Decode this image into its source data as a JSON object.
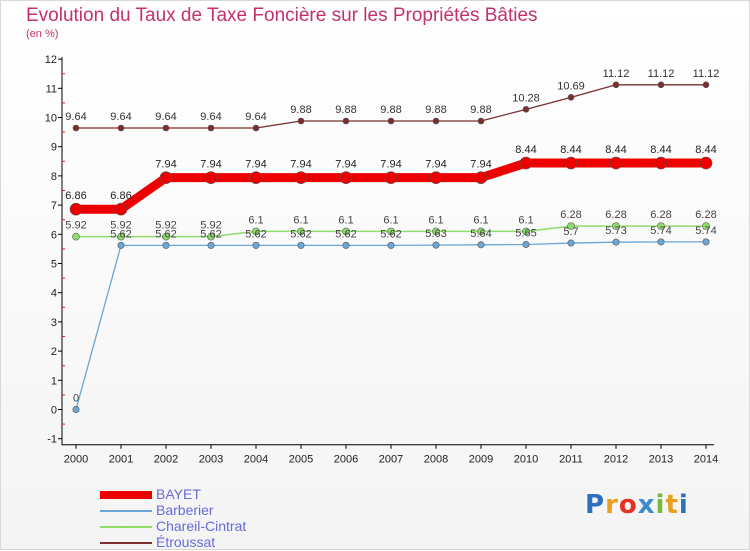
{
  "chart_data": {
    "type": "line",
    "title": "Evolution du Taux de Taxe Foncière sur les Propriétés Bâties",
    "ylabel": "(en %)",
    "xlabel": "",
    "x": [
      "2000",
      "2001",
      "2002",
      "2003",
      "2004",
      "2005",
      "2006",
      "2007",
      "2008",
      "2009",
      "2010",
      "2011",
      "2012",
      "2013",
      "2014"
    ],
    "ylim": [
      -1,
      12
    ],
    "yticks": [
      -1,
      0,
      1,
      2,
      3,
      4,
      5,
      6,
      7,
      8,
      9,
      10,
      11,
      12
    ],
    "grid": false,
    "legend_position": "bottom-left",
    "series": [
      {
        "name": "Étroussat",
        "color": "#7a2e2e",
        "values": [
          9.64,
          9.64,
          9.64,
          9.64,
          9.64,
          9.88,
          9.88,
          9.88,
          9.88,
          9.88,
          10.28,
          10.69,
          11.12,
          11.12,
          11.12
        ],
        "labels": [
          "9.64",
          "9.64",
          "9.64",
          "9.64",
          "9.64",
          "9.88",
          "9.88",
          "9.88",
          "9.88",
          "9.88",
          "10.28",
          "10.69",
          "11.12",
          "11.12",
          "11.12"
        ]
      },
      {
        "name": "Chareil-Cintrat",
        "color": "#8fdc6a",
        "values": [
          5.92,
          5.92,
          5.92,
          5.92,
          6.1,
          6.1,
          6.1,
          6.1,
          6.1,
          6.1,
          6.1,
          6.28,
          6.28,
          6.28,
          6.28
        ],
        "labels": [
          "5.92",
          "5.92",
          "5.92",
          "5.92",
          "6.1",
          "6.1",
          "6.1",
          "6.1",
          "6.1",
          "6.1",
          "6.1",
          "6.28",
          "6.28",
          "6.28",
          "6.28"
        ]
      },
      {
        "name": "Barberier",
        "color": "#6aa6d6",
        "values": [
          0,
          5.62,
          5.62,
          5.62,
          5.62,
          5.62,
          5.62,
          5.62,
          5.63,
          5.64,
          5.65,
          5.7,
          5.73,
          5.74,
          5.74
        ],
        "labels": [
          "0",
          "5.62",
          "5.62",
          "5.62",
          "5.62",
          "5.62",
          "5.62",
          "5.62",
          "5.63",
          "5.64",
          "5.65",
          "5.7",
          "5.73",
          "5.74",
          "5.74"
        ]
      },
      {
        "name": "BAYET",
        "color": "#ee0000",
        "values": [
          6.86,
          6.86,
          7.94,
          7.94,
          7.94,
          7.94,
          7.94,
          7.94,
          7.94,
          7.94,
          8.44,
          8.44,
          8.44,
          8.44,
          8.44
        ],
        "labels": [
          "6.86",
          "6.86",
          "7.94",
          "7.94",
          "7.94",
          "7.94",
          "7.94",
          "7.94",
          "7.94",
          "7.94",
          "8.44",
          "8.44",
          "8.44",
          "8.44",
          "8.44"
        ]
      }
    ]
  },
  "legend": [
    {
      "label": "BAYET",
      "color": "#ee0000",
      "weight": 8
    },
    {
      "label": "Barberier",
      "color": "#6aa6d6",
      "weight": 2
    },
    {
      "label": "Chareil-Cintrat",
      "color": "#8fdc6a",
      "weight": 2
    },
    {
      "label": "Étroussat",
      "color": "#7a2e2e",
      "weight": 2
    }
  ],
  "logo": {
    "letters": [
      "P",
      "r",
      "o",
      "x",
      "i",
      "t",
      "i"
    ],
    "colors": [
      "#2f6fbf",
      "#e8a020",
      "#e83020",
      "#3a8ad0",
      "#7ab83a",
      "#e8a020",
      "#2f6fbf"
    ]
  }
}
